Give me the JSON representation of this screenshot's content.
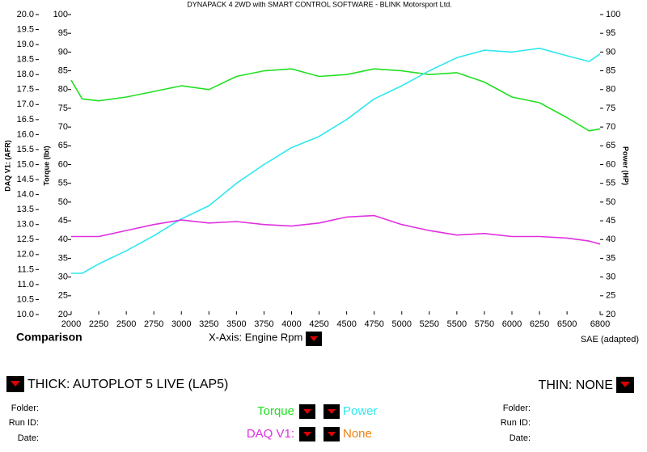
{
  "chart_data": {
    "type": "line",
    "title": "DYNAPACK 4 2WD with SMART CONTROL SOFTWARE - BLINK Motorsport Ltd.",
    "y_label": "Torque (lbt)",
    "y2_label": "Power (HP)",
    "y3_label": "DAQ V1: (AFR)",
    "x": [
      2000,
      2100,
      2250,
      2500,
      2750,
      3000,
      3250,
      3500,
      3750,
      4000,
      4250,
      4500,
      4750,
      5000,
      5250,
      5500,
      5750,
      6000,
      6250,
      6500,
      6700,
      6800
    ],
    "xlim": [
      2000,
      6800
    ],
    "xticks": [
      2000,
      2250,
      2500,
      2750,
      3000,
      3250,
      3500,
      3750,
      4000,
      4250,
      4500,
      4750,
      5000,
      5250,
      5500,
      5750,
      6000,
      6250,
      6500,
      6800
    ],
    "ylim": [
      20,
      100
    ],
    "yticks": [
      20,
      25,
      30,
      35,
      40,
      45,
      50,
      55,
      60,
      65,
      70,
      75,
      80,
      85,
      90,
      95,
      100
    ],
    "y2lim": [
      20,
      100
    ],
    "y2ticks": [
      20,
      25,
      30,
      35,
      40,
      45,
      50,
      55,
      60,
      65,
      70,
      75,
      80,
      85,
      90,
      95,
      100
    ],
    "y3lim": [
      10,
      20
    ],
    "y3ticks": [
      {
        "value": 10,
        "label": "10.0"
      },
      {
        "value": 10.5,
        "label": "10.5"
      },
      {
        "value": 11,
        "label": "11.0"
      },
      {
        "value": 11.5,
        "label": "11.5"
      },
      {
        "value": 12,
        "label": "12.0"
      },
      {
        "value": 12.5,
        "label": "12.5"
      },
      {
        "value": 13,
        "label": "13.0"
      },
      {
        "value": 13.5,
        "label": "13.5"
      },
      {
        "value": 14,
        "label": "14.0"
      },
      {
        "value": 14.5,
        "label": "14.5"
      },
      {
        "value": 15,
        "label": "15.0"
      },
      {
        "value": 15.5,
        "label": "15.5"
      },
      {
        "value": 16,
        "label": "16.0"
      },
      {
        "value": 16.5,
        "label": "16.5"
      },
      {
        "value": 17,
        "label": "17.0"
      },
      {
        "value": 17.5,
        "label": "17.5"
      },
      {
        "value": 18,
        "label": "18.0"
      },
      {
        "value": 18.5,
        "label": "18.5"
      },
      {
        "value": 19,
        "label": "19.0"
      },
      {
        "value": 19.5,
        "label": "19.5"
      },
      {
        "value": 20,
        "label": "20.0"
      }
    ],
    "series": [
      {
        "name": "Torque",
        "color": "#22e022",
        "axis": "y",
        "values": [
          82.5,
          77.5,
          77,
          78,
          79.5,
          81,
          80,
          83.5,
          85,
          85.5,
          83.5,
          84,
          85.5,
          85,
          84,
          84.5,
          82,
          78,
          76.5,
          72.5,
          69,
          69.5
        ]
      },
      {
        "name": "Power",
        "color": "#2ee8ee",
        "axis": "y2",
        "values": [
          31,
          31,
          33.5,
          37,
          41,
          45.5,
          49,
          55,
          60,
          64.5,
          67.5,
          72,
          77.5,
          81,
          85,
          88.5,
          90.5,
          90,
          91,
          89,
          87.5,
          89.5
        ]
      },
      {
        "name": "DAQ V1:",
        "color": "#e030e0",
        "axis": "y3",
        "values": [
          12.6,
          12.6,
          12.6,
          12.8,
          13,
          13.15,
          13.05,
          13.1,
          13,
          12.95,
          13.05,
          13.25,
          13.3,
          13,
          12.8,
          12.65,
          12.7,
          12.6,
          12.6,
          12.55,
          12.45,
          12.35
        ]
      }
    ]
  },
  "ui": {
    "comparison": "Comparison",
    "x_axis": "X-Axis: Engine Rpm",
    "standard": "SAE (adapted)",
    "thick": "THICK: AUTOPLOT 5 LIVE (LAP5)",
    "thin": "THIN: NONE",
    "left_fields": [
      "Folder:",
      "Run ID:",
      "Date:"
    ],
    "right_fields": [
      "Folder:",
      "Run ID:",
      "Date:"
    ],
    "none": "None"
  }
}
